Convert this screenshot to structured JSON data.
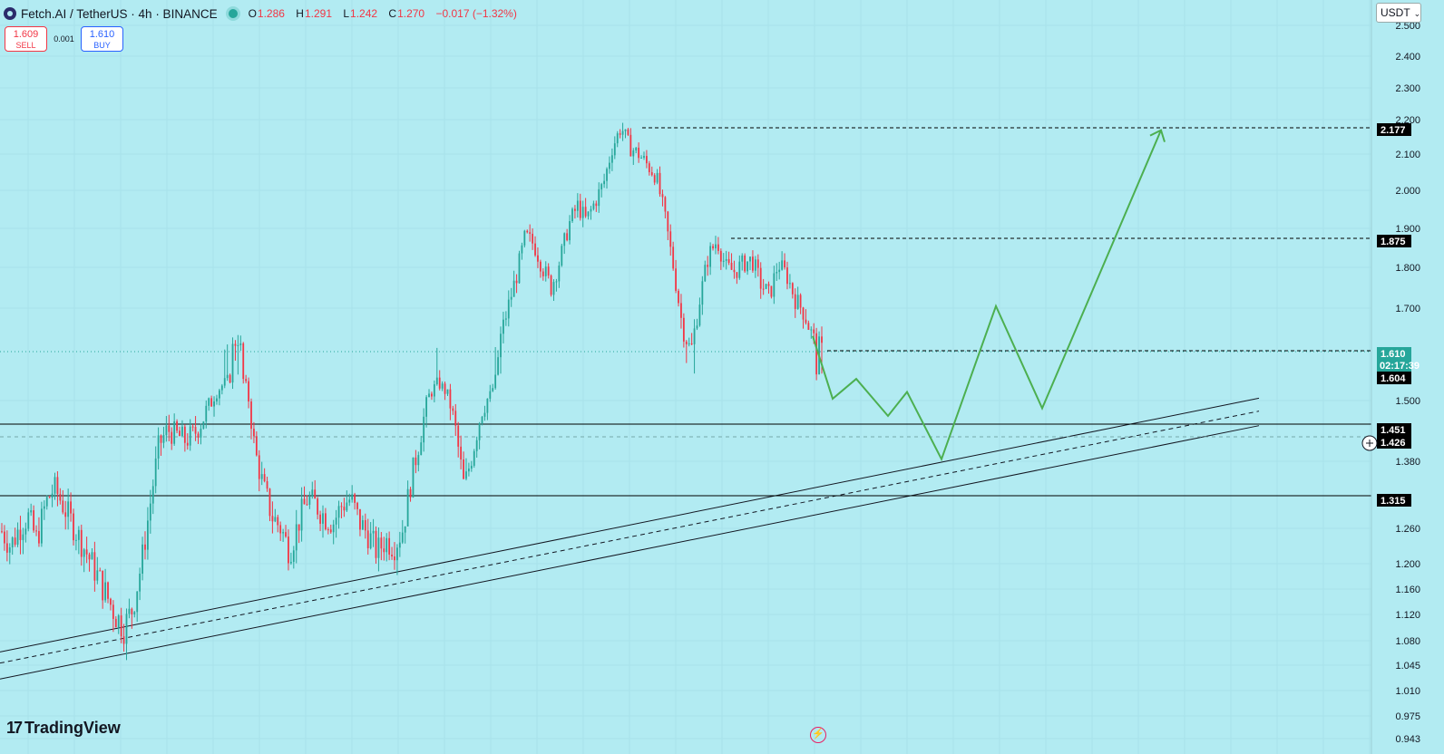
{
  "header": {
    "symbol": "Fetch.AI",
    "quote": "TetherUS",
    "interval": "4h",
    "exchange": "BINANCE",
    "title": "Fetch.AI / TetherUS · 4h · BINANCE",
    "ohlc": {
      "o_label": "O",
      "o": "1.286",
      "h_label": "H",
      "h": "1.291",
      "l_label": "L",
      "l": "1.242",
      "c_label": "C",
      "c": "1.270",
      "change": "−0.017 (−1.32%)"
    }
  },
  "trade": {
    "sell_price": "1.609",
    "sell_label": "SELL",
    "spread": "0.001",
    "buy_price": "1.610",
    "buy_label": "BUY"
  },
  "currency": "USDT",
  "brand": "TradingView",
  "colors": {
    "background": "#b2ebf2",
    "up": "#26a69a",
    "down": "#f23645",
    "projection": "#4caf50",
    "level": "#000000"
  },
  "chart_data": {
    "type": "candlestick",
    "price_axis": {
      "ticks": [
        "2.500",
        "2.400",
        "2.300",
        "2.200",
        "2.100",
        "2.000",
        "1.900",
        "1.800",
        "1.700",
        "1.500",
        "1.380",
        "1.260",
        "1.200",
        "1.160",
        "1.120",
        "1.080",
        "1.045",
        "1.010",
        "0.975",
        "0.943"
      ],
      "range": [
        0.943,
        2.5
      ]
    },
    "price_labels": [
      {
        "text": "2.177",
        "value": 2.177,
        "style": "black"
      },
      {
        "text": "1.875",
        "value": 1.875,
        "style": "black"
      },
      {
        "text": "1.610",
        "sub": "02:17:39",
        "value": 1.61,
        "style": "teal"
      },
      {
        "text": "1.604",
        "value": 1.604,
        "style": "black"
      },
      {
        "text": "1.451",
        "value": 1.451,
        "style": "black"
      },
      {
        "text": "1.426",
        "value": 1.426,
        "style": "black"
      },
      {
        "text": "1.315",
        "value": 1.315,
        "style": "black"
      }
    ],
    "horizontal_levels": [
      {
        "value": 1.451,
        "style": "solid"
      },
      {
        "value": 1.315,
        "style": "solid"
      },
      {
        "value": 2.177,
        "style": "dashed"
      },
      {
        "value": 1.875,
        "style": "dashed"
      },
      {
        "value": 1.604,
        "style": "dashed"
      }
    ],
    "candle_path": [
      1.255,
      1.23,
      1.26,
      1.28,
      1.24,
      1.3,
      1.33,
      1.3,
      1.27,
      1.24,
      1.21,
      1.18,
      1.15,
      1.12,
      1.1,
      1.13,
      1.2,
      1.3,
      1.41,
      1.44,
      1.43,
      1.42,
      1.43,
      1.46,
      1.5,
      1.55,
      1.58,
      1.64,
      1.55,
      1.4,
      1.33,
      1.28,
      1.26,
      1.22,
      1.27,
      1.31,
      1.3,
      1.28,
      1.27,
      1.3,
      1.31,
      1.27,
      1.25,
      1.22,
      1.24,
      1.23,
      1.26,
      1.35,
      1.43,
      1.52,
      1.57,
      1.53,
      1.44,
      1.33,
      1.4,
      1.48,
      1.52,
      1.62,
      1.7,
      1.78,
      1.88,
      1.86,
      1.8,
      1.75,
      1.82,
      1.91,
      1.96,
      1.92,
      1.97,
      2.02,
      2.12,
      2.18,
      2.12,
      2.1,
      2.07,
      2.04,
      1.93,
      1.8,
      1.66,
      1.6,
      1.72,
      1.83,
      1.87,
      1.8,
      1.79,
      1.81,
      1.82,
      1.76,
      1.73,
      1.81,
      1.78,
      1.72,
      1.69,
      1.63,
      1.604
    ]
  },
  "drawings": {
    "channel_upper": {
      "from": [
        0,
        1.064
      ],
      "to": [
        1388,
        1.509
      ]
    },
    "channel_mid": {
      "from": [
        0,
        1.048
      ],
      "to": [
        1388,
        1.478
      ]
    },
    "channel_lower": {
      "from": [
        0,
        1.026
      ],
      "to": [
        1388,
        1.448
      ]
    },
    "projection_path": [
      [
        896,
        1.637
      ],
      [
        918,
        1.507
      ],
      [
        944,
        1.583
      ],
      [
        979,
        1.468
      ],
      [
        1000,
        1.533
      ],
      [
        1038,
        1.384
      ],
      [
        1098,
        1.705
      ],
      [
        1149,
        1.484
      ],
      [
        1280,
        2.17
      ]
    ]
  }
}
